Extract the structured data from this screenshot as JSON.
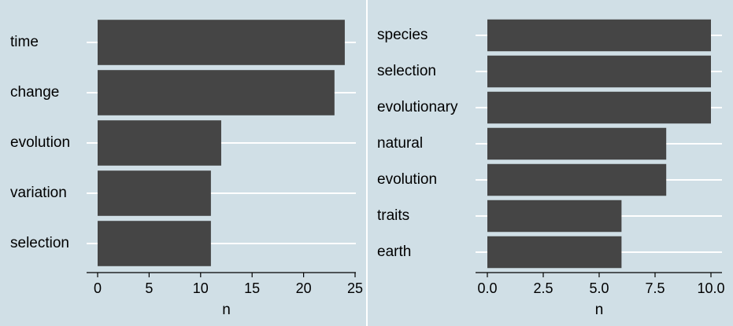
{
  "chart_data": [
    {
      "type": "bar",
      "orientation": "horizontal",
      "categories": [
        "time",
        "change",
        "evolution",
        "variation",
        "selection"
      ],
      "values": [
        24,
        23,
        12,
        11,
        11
      ],
      "xlabel": "n",
      "xlim": [
        0,
        25
      ],
      "xticks": [
        {
          "value": 0,
          "label": "0"
        },
        {
          "value": 5,
          "label": "5"
        },
        {
          "value": 10,
          "label": "10"
        },
        {
          "value": 15,
          "label": "15"
        },
        {
          "value": 20,
          "label": "20"
        },
        {
          "value": 25,
          "label": "25"
        }
      ],
      "grid": "horizontal",
      "colors": {
        "bar": "#454545",
        "background": "#d0dfe6",
        "grid": "#ffffff"
      }
    },
    {
      "type": "bar",
      "orientation": "horizontal",
      "categories": [
        "species",
        "selection",
        "evolutionary",
        "natural",
        "evolution",
        "traits",
        "earth"
      ],
      "values": [
        10,
        10,
        10,
        8,
        8,
        6,
        6
      ],
      "xlabel": "n",
      "xlim": [
        0,
        10
      ],
      "xticks": [
        {
          "value": 0,
          "label": "0.0"
        },
        {
          "value": 2.5,
          "label": "2.5"
        },
        {
          "value": 5,
          "label": "5.0"
        },
        {
          "value": 7.5,
          "label": "7.5"
        },
        {
          "value": 10,
          "label": "10.0"
        }
      ],
      "grid": "horizontal",
      "colors": {
        "bar": "#454545",
        "background": "#d0dfe6",
        "grid": "#ffffff"
      }
    }
  ]
}
